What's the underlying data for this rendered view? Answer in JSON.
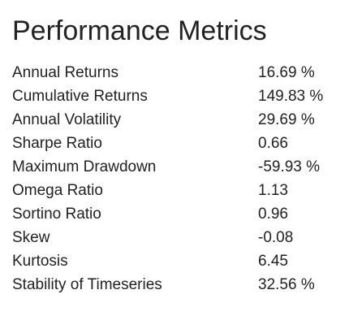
{
  "header": {
    "title": "Performance Metrics"
  },
  "table": {
    "rows": [
      [
        "Annual Returns",
        "16.69 %"
      ],
      [
        "Cumulative Returns",
        "149.83 %"
      ],
      [
        "Annual Volatility",
        "29.69 %"
      ],
      [
        "Sharpe Ratio",
        "0.66"
      ],
      [
        "Maximum Drawdown",
        "-59.93 %"
      ],
      [
        "Omega Ratio",
        "1.13"
      ],
      [
        "Sortino Ratio",
        "0.96"
      ],
      [
        "Skew",
        "-0.08"
      ],
      [
        "Kurtosis",
        "6.45"
      ],
      [
        "Stability of Timeseries",
        "32.56 %"
      ]
    ]
  }
}
